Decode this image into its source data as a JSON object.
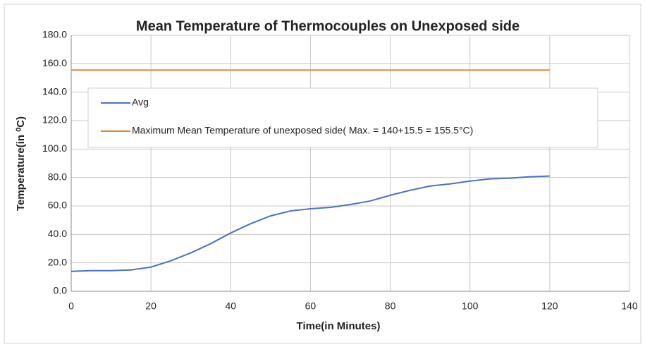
{
  "chart_data": {
    "type": "line",
    "title": "Mean Temperature of Thermocouples on Unexposed side",
    "xlabel": "Time(in Minutes)",
    "ylabel": "Temperature(in ⁰C)",
    "series": [
      {
        "name": "Avg",
        "color": "#4a72c0",
        "x": [
          0,
          5,
          10,
          15,
          20,
          25,
          30,
          35,
          40,
          45,
          50,
          55,
          60,
          65,
          70,
          75,
          80,
          85,
          90,
          95,
          100,
          105,
          110,
          115,
          120
        ],
        "values": [
          14,
          14.5,
          14.5,
          15,
          17,
          21.5,
          27,
          33.5,
          41,
          47.5,
          53,
          56.5,
          58,
          59,
          61,
          63.5,
          67.5,
          71,
          74,
          75.5,
          77.5,
          79,
          79.5,
          80.5,
          81
        ]
      },
      {
        "name": "Maximum Mean Temperature of unexposed side( Max. = 140+15.5 = 155.5°C)",
        "color": "#e8812f",
        "x": [
          0,
          120
        ],
        "values": [
          155.5,
          155.5
        ]
      }
    ],
    "xlim": [
      0,
      140
    ],
    "xticks": [
      0,
      20,
      40,
      60,
      80,
      100,
      120,
      140
    ],
    "ylim": [
      0,
      180
    ],
    "yticks": [
      {
        "value": 0,
        "label": "0.0"
      },
      {
        "value": 20,
        "label": "20.0"
      },
      {
        "value": 40,
        "label": "40.0"
      },
      {
        "value": 60,
        "label": "60.0"
      },
      {
        "value": 80,
        "label": "80.0"
      },
      {
        "value": 100,
        "label": "100.0"
      },
      {
        "value": 120,
        "label": "120.0"
      },
      {
        "value": 140,
        "label": "140.0"
      },
      {
        "value": 160,
        "label": "160.0"
      },
      {
        "value": 180,
        "label": "180.0"
      }
    ],
    "grid": true,
    "legend": "upper left"
  }
}
